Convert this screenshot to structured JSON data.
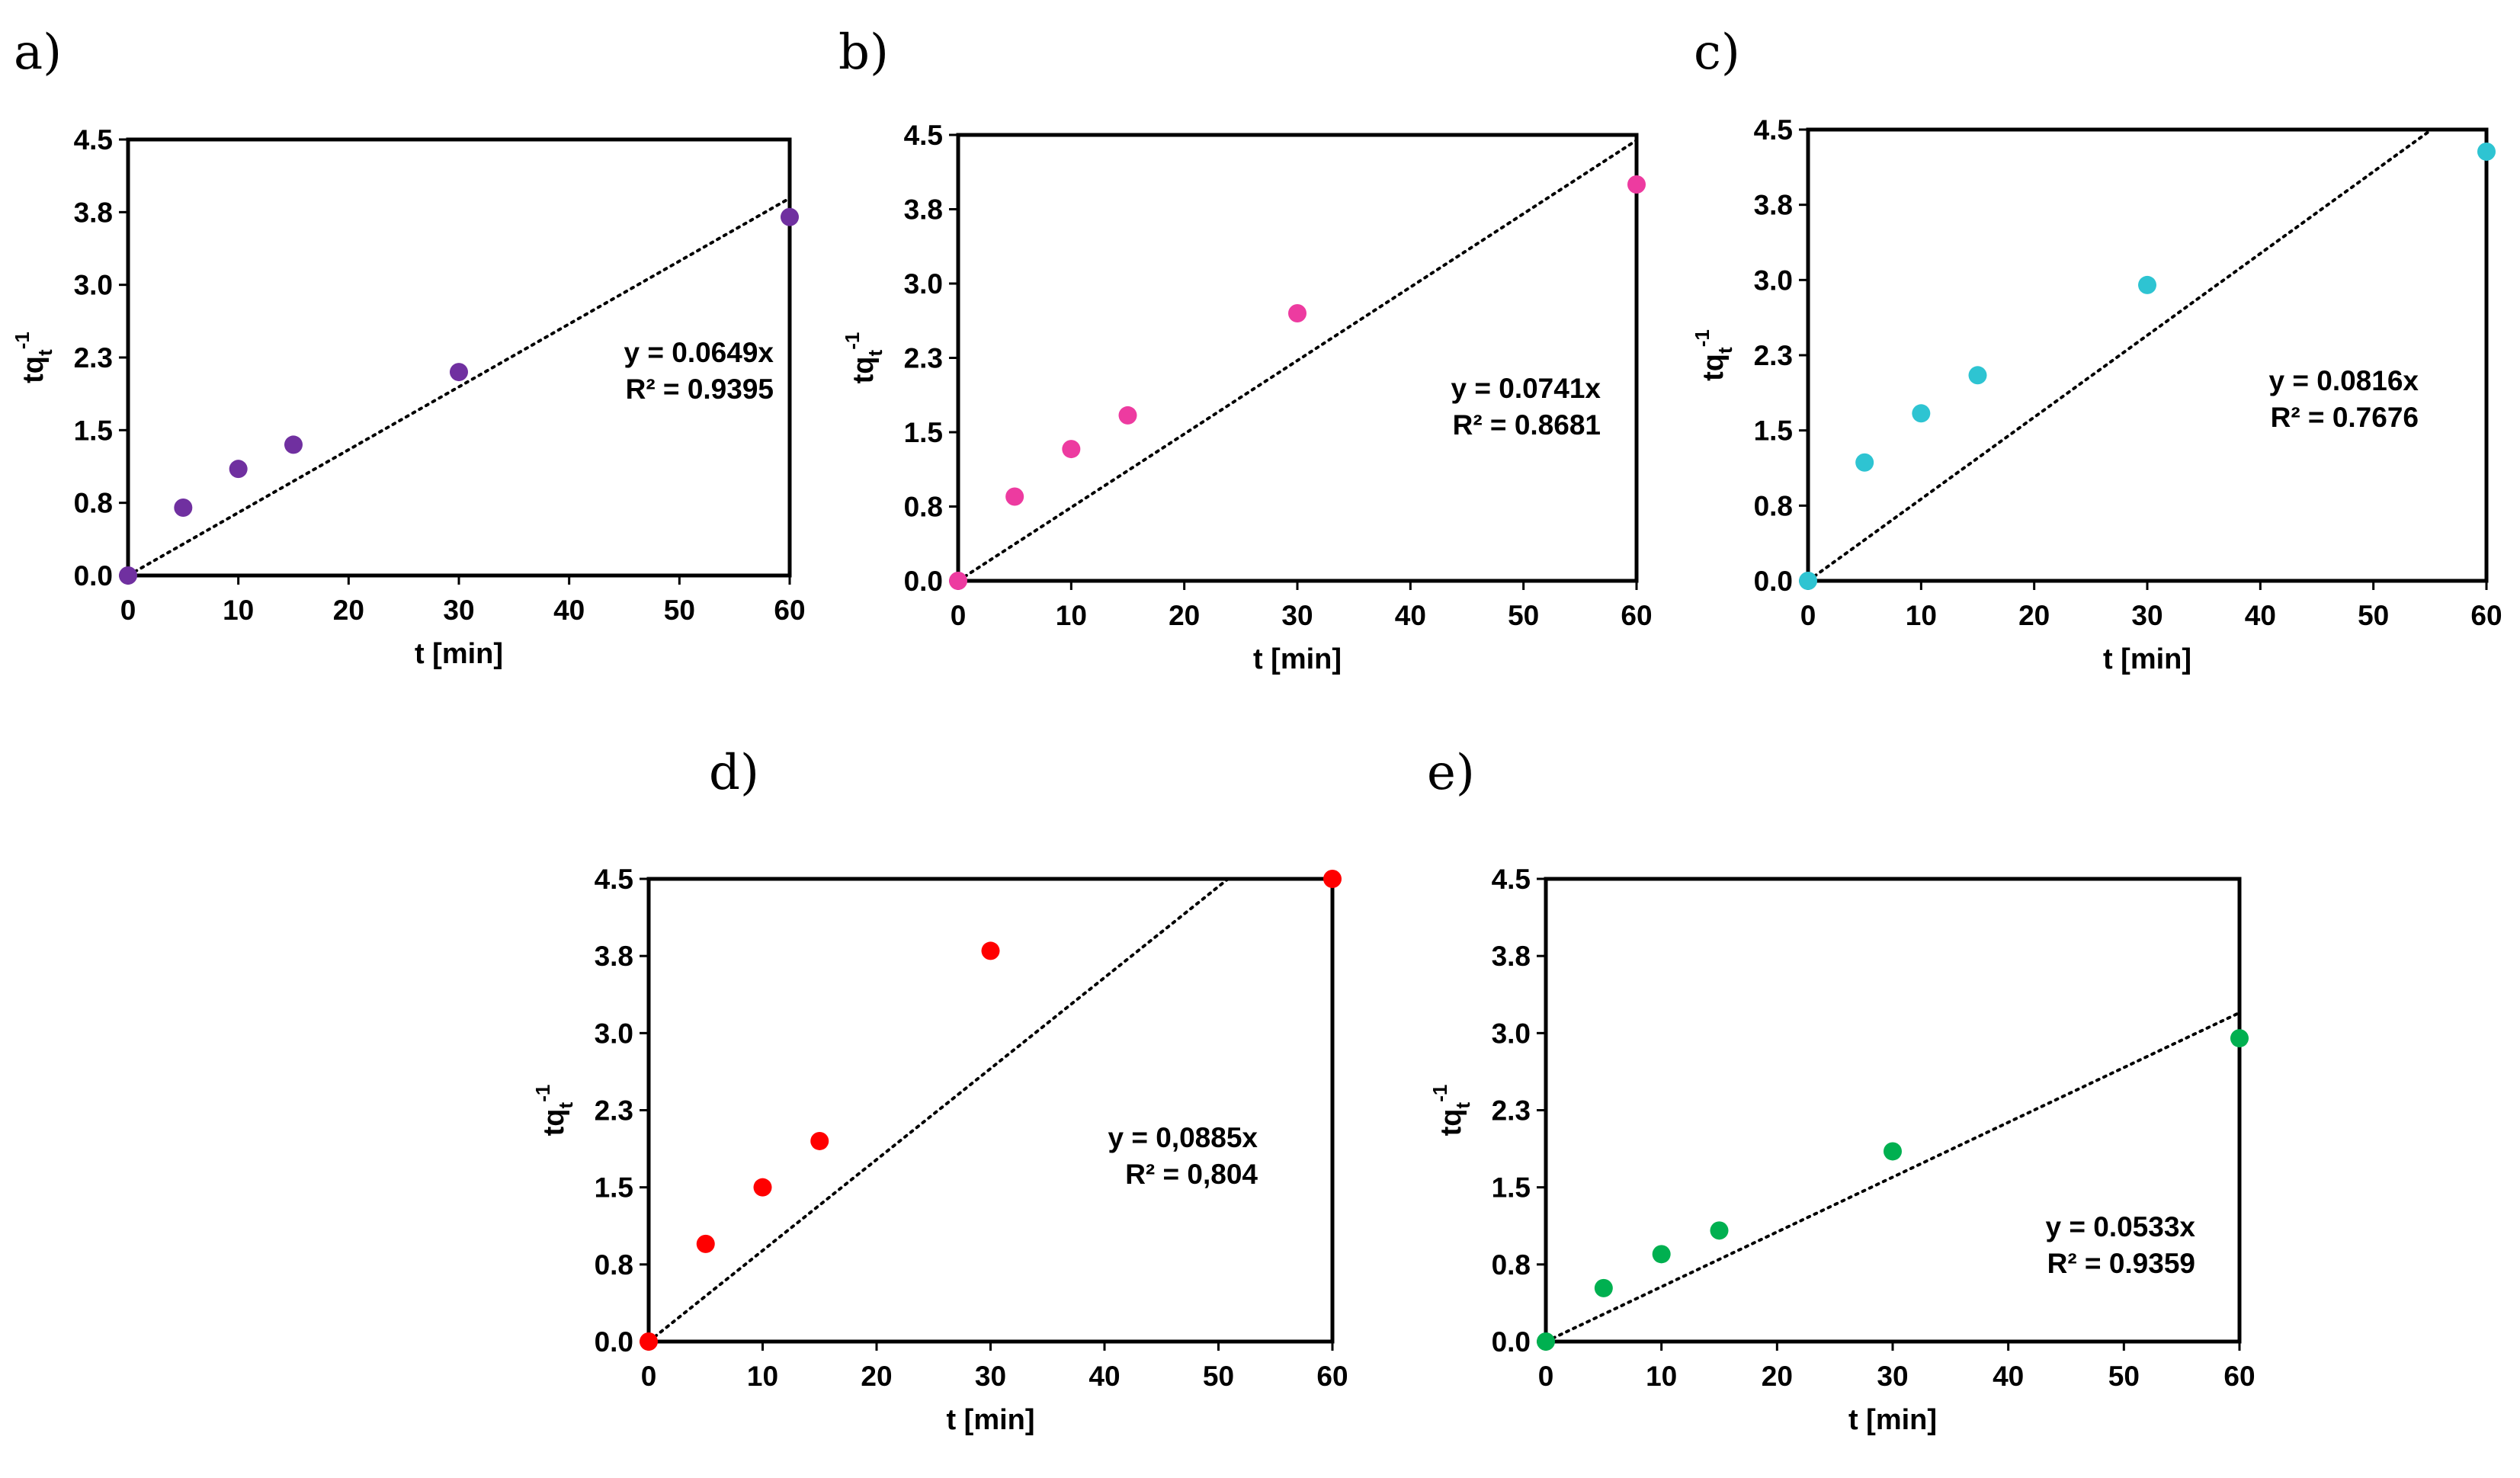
{
  "chart_data": [
    {
      "panel": "a)",
      "type": "scatter",
      "x": [
        0,
        5,
        10,
        15,
        30,
        60
      ],
      "y": [
        0.0,
        0.7,
        1.1,
        1.35,
        2.1,
        3.7
      ],
      "color": "#7030a0",
      "trendline_slope": 0.0649,
      "equation": "y = 0.0649x",
      "r2": "R² = 0.9395",
      "xlabel": "t [min]",
      "ylabel": "tqt-1",
      "ylabel_main": "tq",
      "ylabel_sub": "t",
      "ylabel_sup": "-1",
      "xlim": [
        0,
        60
      ],
      "ylim": [
        0,
        4.5
      ],
      "xticks": [
        0,
        10,
        20,
        30,
        40,
        50,
        60
      ],
      "yticks": [
        0,
        0.75,
        1.5,
        2.25,
        3.0,
        3.75,
        4.5
      ],
      "xtick_labels": [
        "0",
        "10",
        "20",
        "30",
        "40",
        "50",
        "60"
      ],
      "ytick_labels": [
        "0.0",
        "0.8",
        "1.5",
        "2.3",
        "3.0",
        "3.8",
        "4.5"
      ]
    },
    {
      "panel": "b)",
      "type": "scatter",
      "x": [
        0,
        5,
        10,
        15,
        30,
        60
      ],
      "y": [
        0.0,
        0.85,
        1.33,
        1.67,
        2.7,
        4.0
      ],
      "color": "#ed3ba0",
      "trendline_slope": 0.0741,
      "equation": "y = 0.0741x",
      "r2": "R² = 0.8681",
      "xlabel": "t [min]",
      "ylabel": "tqt-1",
      "ylabel_main": "tq",
      "ylabel_sub": "t",
      "ylabel_sup": "-1",
      "xlim": [
        0,
        60
      ],
      "ylim": [
        0,
        4.5
      ],
      "xticks": [
        0,
        10,
        20,
        30,
        40,
        50,
        60
      ],
      "yticks": [
        0,
        0.75,
        1.5,
        2.25,
        3.0,
        3.75,
        4.5
      ],
      "xtick_labels": [
        "0",
        "10",
        "20",
        "30",
        "40",
        "50",
        "60"
      ],
      "ytick_labels": [
        "0.0",
        "0.8",
        "1.5",
        "2.3",
        "3.0",
        "3.8",
        "4.5"
      ]
    },
    {
      "panel": "c)",
      "type": "scatter",
      "x": [
        0,
        5,
        10,
        15,
        30,
        60
      ],
      "y": [
        0.0,
        1.18,
        1.67,
        2.05,
        2.95,
        4.28
      ],
      "color": "#2ec4d2",
      "trendline_slope": 0.0816,
      "equation": "y = 0.0816x",
      "r2": "R² = 0.7676",
      "xlabel": "t [min]",
      "ylabel": "tqt-1",
      "ylabel_main": "tq",
      "ylabel_sub": "t",
      "ylabel_sup": "-1",
      "xlim": [
        0,
        60
      ],
      "ylim": [
        0,
        4.5
      ],
      "xticks": [
        0,
        10,
        20,
        30,
        40,
        50,
        60
      ],
      "yticks": [
        0,
        0.75,
        1.5,
        2.25,
        3.0,
        3.75,
        4.5
      ],
      "xtick_labels": [
        "0",
        "10",
        "20",
        "30",
        "40",
        "50",
        "60"
      ],
      "ytick_labels": [
        "0.0",
        "0.8",
        "1.5",
        "2.3",
        "3.0",
        "3.8",
        "4.5"
      ]
    },
    {
      "panel": "d)",
      "type": "scatter",
      "x": [
        0,
        5,
        10,
        15,
        30,
        60
      ],
      "y": [
        0.0,
        0.95,
        1.5,
        1.95,
        3.8,
        4.5
      ],
      "color": "#ff0000",
      "trendline_slope": 0.0885,
      "equation": "y = 0,0885x",
      "r2": "R² = 0,804",
      "xlabel": "t [min]",
      "ylabel": "tqt-1",
      "ylabel_main": "tq",
      "ylabel_sub": "t",
      "ylabel_sup": "-1",
      "xlim": [
        0,
        60
      ],
      "ylim": [
        0,
        4.5
      ],
      "xticks": [
        0,
        10,
        20,
        30,
        40,
        50,
        60
      ],
      "yticks": [
        0,
        0.75,
        1.5,
        2.25,
        3.0,
        3.75,
        4.5
      ],
      "xtick_labels": [
        "0",
        "10",
        "20",
        "30",
        "40",
        "50",
        "60"
      ],
      "ytick_labels": [
        "0.0",
        "0.8",
        "1.5",
        "2.3",
        "3.0",
        "3.8",
        "4.5"
      ]
    },
    {
      "panel": "e)",
      "type": "scatter",
      "x": [
        0,
        5,
        10,
        15,
        30,
        60
      ],
      "y": [
        0.0,
        0.52,
        0.85,
        1.08,
        1.85,
        2.95
      ],
      "color": "#00b050",
      "trendline_slope": 0.0533,
      "equation": "y = 0.0533x",
      "r2": "R² = 0.9359",
      "xlabel": "t [min]",
      "ylabel": "tqt-1",
      "ylabel_main": "tq",
      "ylabel_sub": "t",
      "ylabel_sup": "-1",
      "xlim": [
        0,
        60
      ],
      "ylim": [
        0,
        4.5
      ],
      "xticks": [
        0,
        10,
        20,
        30,
        40,
        50,
        60
      ],
      "yticks": [
        0,
        0.75,
        1.5,
        2.25,
        3.0,
        3.75,
        4.5
      ],
      "xtick_labels": [
        "0",
        "10",
        "20",
        "30",
        "40",
        "50",
        "60"
      ],
      "ytick_labels": [
        "0.0",
        "0.8",
        "1.5",
        "2.3",
        "3.0",
        "3.8",
        "4.5"
      ]
    }
  ]
}
